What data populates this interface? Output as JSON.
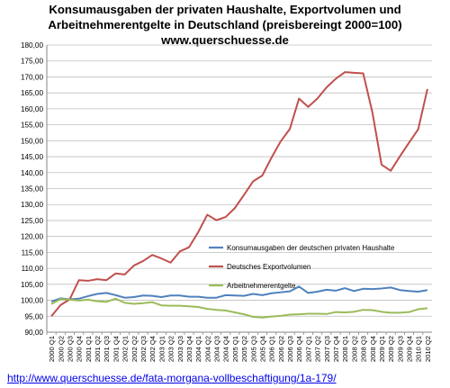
{
  "header": {
    "title_line1": "Konsumausgaben der privaten Haushalte, Exportvolumen und",
    "title_line2": "Arbeitnehmerentgelte in Deutschland (preisbereingt 2000=100)",
    "title_line3": "www.querschuesse.de"
  },
  "footer": {
    "link_text": "http://www.querschuesse.de/fata-morgana-vollbeschaftigung/1a-179/"
  },
  "chart_data": {
    "type": "line",
    "ylim": [
      90,
      180
    ],
    "y_ticks": [
      "90,00",
      "95,00",
      "100,00",
      "105,00",
      "110,00",
      "115,00",
      "120,00",
      "125,00",
      "130,00",
      "135,00",
      "140,00",
      "145,00",
      "150,00",
      "155,00",
      "160,00",
      "165,00",
      "170,00",
      "175,00",
      "180,00"
    ],
    "grid": true,
    "legend_position": "center-right",
    "categories": [
      "2000 Q1",
      "2000 Q2",
      "2000 Q3",
      "2000 Q4",
      "2001 Q1",
      "2001 Q2",
      "2001 Q3",
      "2001 Q4",
      "2002 Q1",
      "2002 Q2",
      "2002 Q3",
      "2002 Q4",
      "2003 Q1",
      "2003 Q2",
      "2003 Q3",
      "2003 Q4",
      "2004 Q1",
      "2004 Q2",
      "2004 Q3",
      "2004 Q4",
      "2005 Q1",
      "2005 Q2",
      "2005 Q3",
      "2005 Q4",
      "2006 Q1",
      "2006 Q2",
      "2006 Q3",
      "2006 Q4",
      "2007 Q1",
      "2007 Q2",
      "2007 Q3",
      "2007 Q4",
      "2008 Q1",
      "2008 Q2",
      "2008 Q3",
      "2008 Q4",
      "2009 Q1",
      "2009 Q2",
      "2009 Q3",
      "2009 Q4",
      "2010 Q1",
      "2010 Q2"
    ],
    "series": [
      {
        "name": "Konsumausgaben der deutschen privaten Haushalte",
        "color": "#4f81bd",
        "values": [
          99.6,
          100.6,
          100.3,
          100.5,
          101.3,
          102.0,
          102.3,
          101.6,
          100.8,
          101.0,
          101.5,
          101.4,
          101.0,
          101.5,
          101.5,
          101.1,
          101.1,
          100.8,
          100.8,
          101.6,
          101.5,
          101.4,
          102.0,
          101.6,
          102.2,
          102.5,
          102.8,
          104.3,
          102.3,
          102.7,
          103.3,
          103.0,
          103.8,
          102.9,
          103.6,
          103.5,
          103.7,
          104.0,
          103.2,
          102.9,
          102.7,
          103.2
        ]
      },
      {
        "name": "Deutsches Exportvolumen",
        "color": "#c0504d",
        "values": [
          95.0,
          98.5,
          100.3,
          106.3,
          106.1,
          106.6,
          106.3,
          108.4,
          108.1,
          110.9,
          112.3,
          114.2,
          113.1,
          111.8,
          115.3,
          116.6,
          121.3,
          126.8,
          125.1,
          126.1,
          128.9,
          133.0,
          137.3,
          139.1,
          144.7,
          149.8,
          153.7,
          163.2,
          160.6,
          163.2,
          166.7,
          169.4,
          171.5,
          171.3,
          171.1,
          158.9,
          142.5,
          140.6,
          145.1,
          149.4,
          153.6,
          166.2
        ]
      },
      {
        "name": "Arbeitnehmerentgelte",
        "color": "#9bbb59",
        "values": [
          98.8,
          100.4,
          100.2,
          99.9,
          100.2,
          99.7,
          99.5,
          100.5,
          99.2,
          98.9,
          99.1,
          99.4,
          98.4,
          98.3,
          98.3,
          98.1,
          97.9,
          97.3,
          97.0,
          96.8,
          96.2,
          95.6,
          94.8,
          94.6,
          94.9,
          95.1,
          95.5,
          95.6,
          95.8,
          95.8,
          95.7,
          96.3,
          96.2,
          96.4,
          97.0,
          96.9,
          96.4,
          96.1,
          96.1,
          96.3,
          97.2,
          97.5
        ]
      }
    ]
  }
}
